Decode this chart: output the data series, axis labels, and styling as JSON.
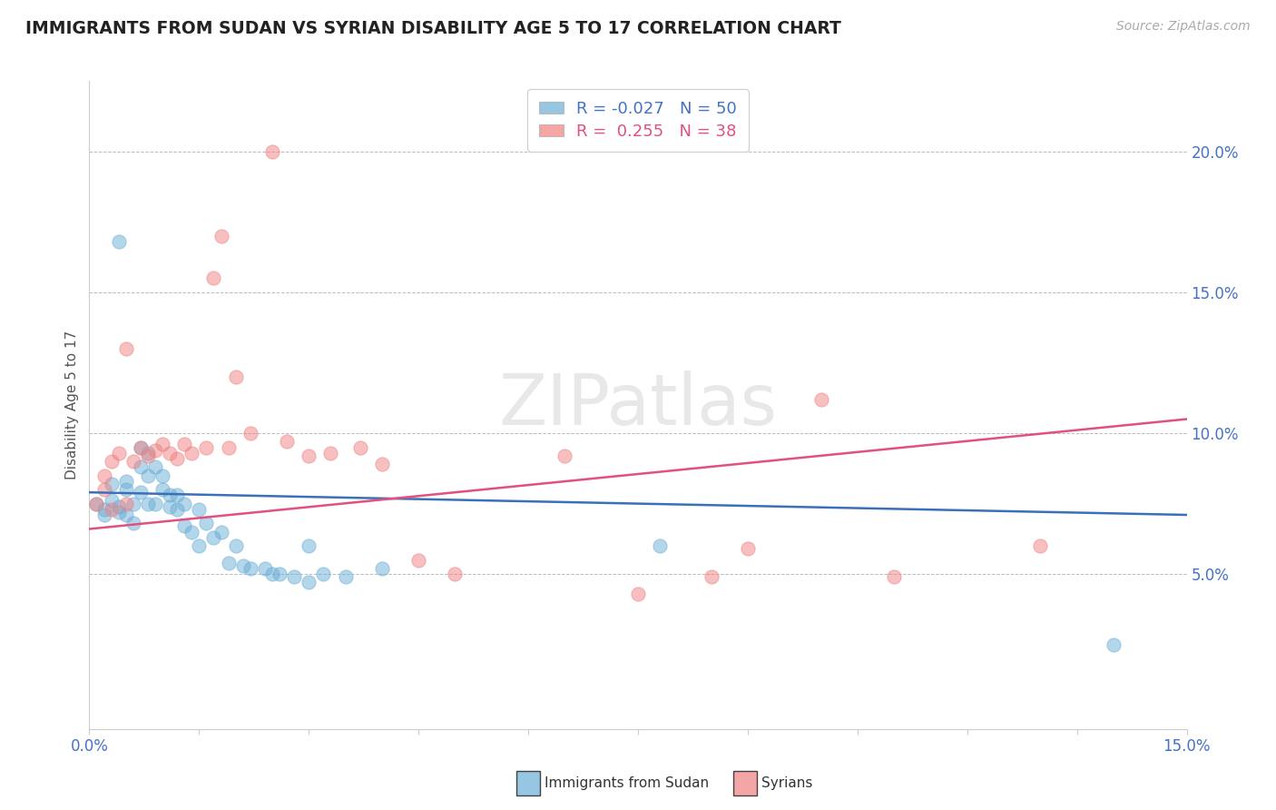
{
  "title": "IMMIGRANTS FROM SUDAN VS SYRIAN DISABILITY AGE 5 TO 17 CORRELATION CHART",
  "source": "Source: ZipAtlas.com",
  "xlim": [
    0.0,
    0.15
  ],
  "ylim": [
    -0.005,
    0.225
  ],
  "ylabel": "Disability Age 5 to 17",
  "sudan_color": "#6baed6",
  "syrian_color": "#f08080",
  "sudan_line_color": "#3a6fba",
  "syrian_line_color": "#e05080",
  "sudan_R": -0.027,
  "sudan_N": 50,
  "syrian_R": 0.255,
  "syrian_N": 38,
  "watermark": "ZIPatlas",
  "sudan_scatter_x": [
    0.004,
    0.001,
    0.002,
    0.002,
    0.003,
    0.003,
    0.004,
    0.004,
    0.005,
    0.005,
    0.005,
    0.006,
    0.006,
    0.007,
    0.007,
    0.007,
    0.008,
    0.008,
    0.008,
    0.009,
    0.009,
    0.01,
    0.01,
    0.011,
    0.011,
    0.012,
    0.012,
    0.013,
    0.013,
    0.014,
    0.015,
    0.015,
    0.016,
    0.017,
    0.018,
    0.019,
    0.02,
    0.021,
    0.022,
    0.024,
    0.025,
    0.026,
    0.028,
    0.03,
    0.03,
    0.032,
    0.035,
    0.04,
    0.078,
    0.14
  ],
  "sudan_scatter_y": [
    0.168,
    0.075,
    0.073,
    0.071,
    0.082,
    0.076,
    0.074,
    0.072,
    0.083,
    0.08,
    0.071,
    0.075,
    0.068,
    0.095,
    0.088,
    0.079,
    0.093,
    0.085,
    0.075,
    0.088,
    0.075,
    0.085,
    0.08,
    0.078,
    0.074,
    0.078,
    0.073,
    0.075,
    0.067,
    0.065,
    0.073,
    0.06,
    0.068,
    0.063,
    0.065,
    0.054,
    0.06,
    0.053,
    0.052,
    0.052,
    0.05,
    0.05,
    0.049,
    0.06,
    0.047,
    0.05,
    0.049,
    0.052,
    0.06,
    0.025
  ],
  "syrian_scatter_x": [
    0.001,
    0.002,
    0.002,
    0.003,
    0.003,
    0.004,
    0.005,
    0.005,
    0.006,
    0.007,
    0.008,
    0.009,
    0.01,
    0.011,
    0.012,
    0.013,
    0.014,
    0.016,
    0.017,
    0.018,
    0.019,
    0.02,
    0.022,
    0.025,
    0.027,
    0.03,
    0.033,
    0.037,
    0.04,
    0.045,
    0.05,
    0.065,
    0.075,
    0.085,
    0.09,
    0.1,
    0.11,
    0.13
  ],
  "syrian_scatter_y": [
    0.075,
    0.08,
    0.085,
    0.073,
    0.09,
    0.093,
    0.075,
    0.13,
    0.09,
    0.095,
    0.092,
    0.094,
    0.096,
    0.093,
    0.091,
    0.096,
    0.093,
    0.095,
    0.155,
    0.17,
    0.095,
    0.12,
    0.1,
    0.2,
    0.097,
    0.092,
    0.093,
    0.095,
    0.089,
    0.055,
    0.05,
    0.092,
    0.043,
    0.049,
    0.059,
    0.112,
    0.049,
    0.06
  ],
  "sudan_line_x": [
    0.0,
    0.15
  ],
  "sudan_line_y": [
    0.079,
    0.071
  ],
  "syrian_line_x": [
    0.0,
    0.15
  ],
  "syrian_line_y": [
    0.066,
    0.105
  ]
}
